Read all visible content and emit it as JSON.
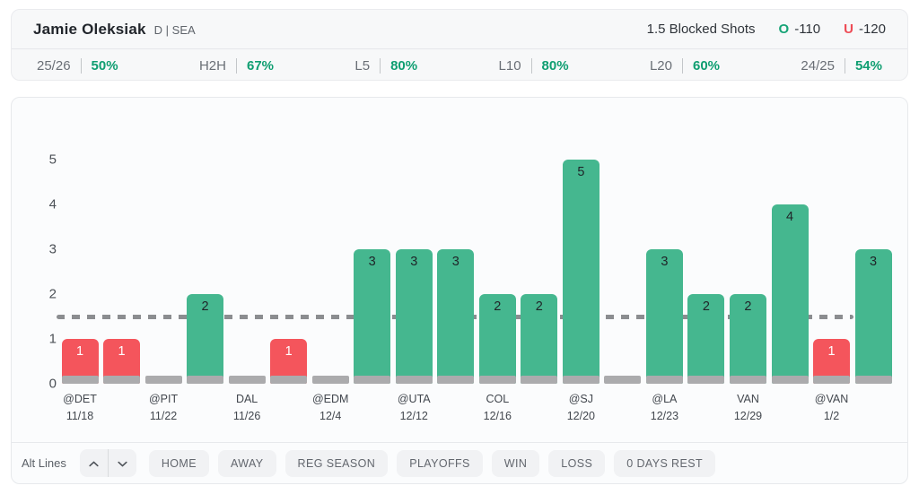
{
  "header": {
    "player_name": "Jamie Oleksiak",
    "position_team": "D | SEA",
    "prop_label": "1.5 Blocked Shots",
    "over_letter": "O",
    "over_odds": "-110",
    "under_letter": "U",
    "under_odds": "-120"
  },
  "splits": [
    {
      "label": "25/26",
      "value": "50%"
    },
    {
      "label": "H2H",
      "value": "67%"
    },
    {
      "label": "L5",
      "value": "80%"
    },
    {
      "label": "L10",
      "value": "80%"
    },
    {
      "label": "L20",
      "value": "60%"
    },
    {
      "label": "24/25",
      "value": "54%"
    }
  ],
  "chart_data": {
    "type": "bar",
    "title": "",
    "xlabel": "",
    "ylabel": "",
    "ylim": [
      0,
      5
    ],
    "yticks": [
      0,
      1,
      2,
      3,
      4,
      5
    ],
    "prop_line": 1.5,
    "grid": false,
    "bars": [
      {
        "value": 1,
        "state": "under",
        "team": "@DET",
        "date": "11/18"
      },
      {
        "value": 1,
        "state": "under"
      },
      {
        "value": 0,
        "state": "zero",
        "team": "@PIT",
        "date": "11/22"
      },
      {
        "value": 2,
        "state": "over"
      },
      {
        "value": 0,
        "state": "zero",
        "team": "DAL",
        "date": "11/26"
      },
      {
        "value": 1,
        "state": "under"
      },
      {
        "value": 0,
        "state": "zero",
        "team": "@EDM",
        "date": "12/4"
      },
      {
        "value": 3,
        "state": "over"
      },
      {
        "value": 3,
        "state": "over",
        "team": "@UTA",
        "date": "12/12"
      },
      {
        "value": 3,
        "state": "over"
      },
      {
        "value": 2,
        "state": "over",
        "team": "COL",
        "date": "12/16"
      },
      {
        "value": 2,
        "state": "over"
      },
      {
        "value": 5,
        "state": "over",
        "team": "@SJ",
        "date": "12/20"
      },
      {
        "value": 0,
        "state": "zero"
      },
      {
        "value": 3,
        "state": "over",
        "team": "@LA",
        "date": "12/23"
      },
      {
        "value": 2,
        "state": "over"
      },
      {
        "value": 2,
        "state": "over",
        "team": "VAN",
        "date": "12/29"
      },
      {
        "value": 4,
        "state": "over"
      },
      {
        "value": 1,
        "state": "under",
        "team": "@VAN",
        "date": "1/2"
      },
      {
        "value": 3,
        "state": "over"
      }
    ],
    "colors": {
      "over": "#45b78f",
      "under": "#f4555c",
      "zero_base": "#ababad",
      "line": "#8b8d90",
      "over_value_text": "#1f2428",
      "under_value_text": "#ffffff"
    }
  },
  "controls": {
    "alt_lines_label": "Alt Lines",
    "buttons": [
      "HOME",
      "AWAY",
      "REG SEASON",
      "PLAYOFFS",
      "WIN",
      "LOSS",
      "0 DAYS REST"
    ]
  }
}
